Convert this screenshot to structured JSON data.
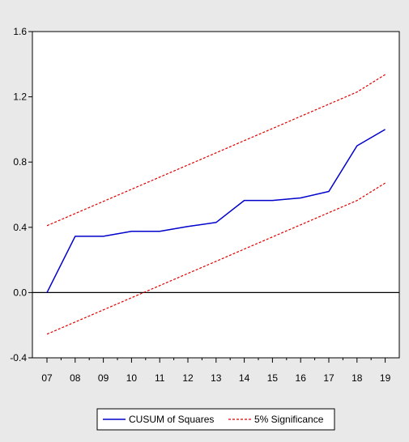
{
  "chart_data": {
    "type": "line",
    "title": "",
    "xlabel": "",
    "ylabel": "",
    "categories": [
      "07",
      "08",
      "09",
      "10",
      "11",
      "12",
      "13",
      "14",
      "15",
      "16",
      "17",
      "18",
      "19"
    ],
    "ylim": [
      -0.4,
      1.6
    ],
    "yticks": [
      "-0.4",
      "0.0",
      "0.4",
      "0.8",
      "1.2",
      "1.6"
    ],
    "grid": false,
    "zero_line": true,
    "legend": {
      "placement": "bottom",
      "entries": [
        "CUSUM of Squares",
        "5% Significance"
      ]
    },
    "series": [
      {
        "name": "CUSUM of Squares",
        "color": "#0000cc",
        "style": "solid",
        "values": [
          0.0,
          0.345,
          0.345,
          0.375,
          0.375,
          0.405,
          0.43,
          0.565,
          0.565,
          0.58,
          0.62,
          0.9,
          1.0
        ]
      },
      {
        "name": "5% Significance",
        "color": "#e00000",
        "style": "dashed",
        "values": [
          0.41,
          0.4845,
          0.5589,
          0.6334,
          0.7079,
          0.7823,
          0.8568,
          0.9313,
          1.0057,
          1.0802,
          1.1547,
          1.2291,
          1.3363
        ]
      },
      {
        "name": "5% Significance (lower)",
        "color": "#e00000",
        "style": "dashed",
        "values": [
          -0.255,
          -0.1805,
          -0.1061,
          -0.0316,
          0.0429,
          0.1173,
          0.1918,
          0.2663,
          0.3407,
          0.4152,
          0.4897,
          0.5641,
          0.6713
        ]
      }
    ]
  }
}
